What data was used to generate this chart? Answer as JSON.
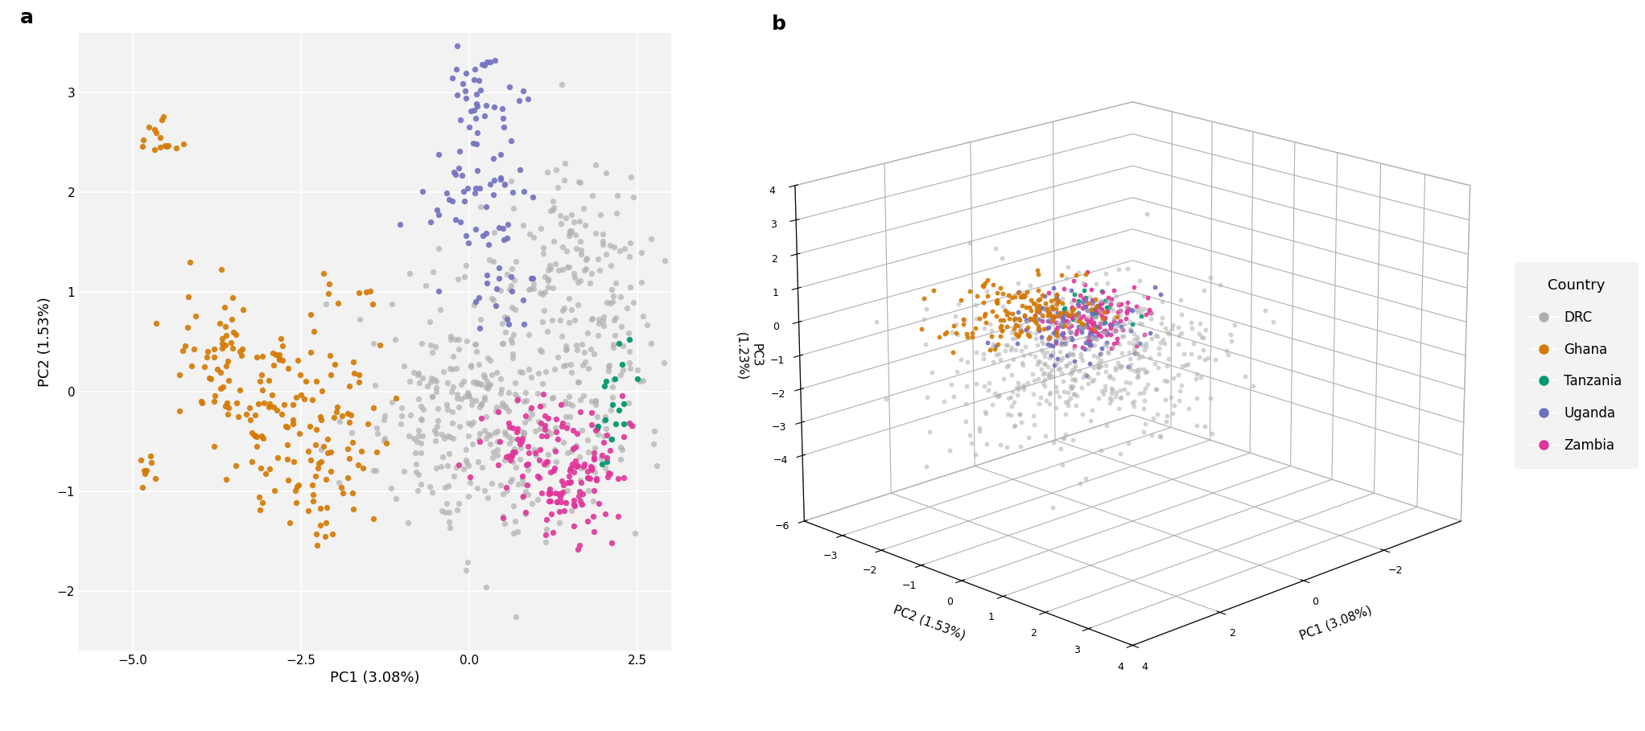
{
  "countries": [
    "DRC",
    "Ghana",
    "Tanzania",
    "Uganda",
    "Zambia"
  ],
  "colors": {
    "DRC": "#b0b0b0",
    "Ghana": "#d47800",
    "Tanzania": "#009970",
    "Uganda": "#7070c0",
    "Zambia": "#e0359a"
  },
  "panel_a": {
    "xlabel": "PC1 (3.08%)",
    "ylabel": "PC2 (1.53%)",
    "xlim": [
      -5.8,
      3.0
    ],
    "ylim": [
      -2.6,
      3.6
    ],
    "xticks": [
      -5.0,
      -2.5,
      0.0,
      2.5
    ],
    "yticks": [
      -2,
      -1,
      0,
      1,
      2,
      3
    ]
  },
  "panel_b": {
    "xlabel": "PC1 (3.08%)",
    "ylabel": "PC2 (1.53%)",
    "zlabel": "PC3\n(1.23%)",
    "xlim": [
      -4,
      4
    ],
    "ylim": [
      -4,
      4
    ],
    "zlim": [
      -6,
      4
    ],
    "xticks": [
      -2,
      0,
      2,
      4
    ],
    "yticks": [
      -3,
      -2,
      -1,
      0,
      1,
      2,
      3,
      4
    ],
    "zticks": [
      -6,
      -4,
      -3,
      -2,
      -1,
      0,
      1,
      2,
      3,
      4
    ]
  },
  "legend_title": "Country",
  "bg_color": "#ffffff",
  "plot_bg": "#ffffff",
  "point_size_2d": 28,
  "point_size_3d": 18,
  "label_a": "a",
  "label_b": "b",
  "elev": 18,
  "azim": 45
}
